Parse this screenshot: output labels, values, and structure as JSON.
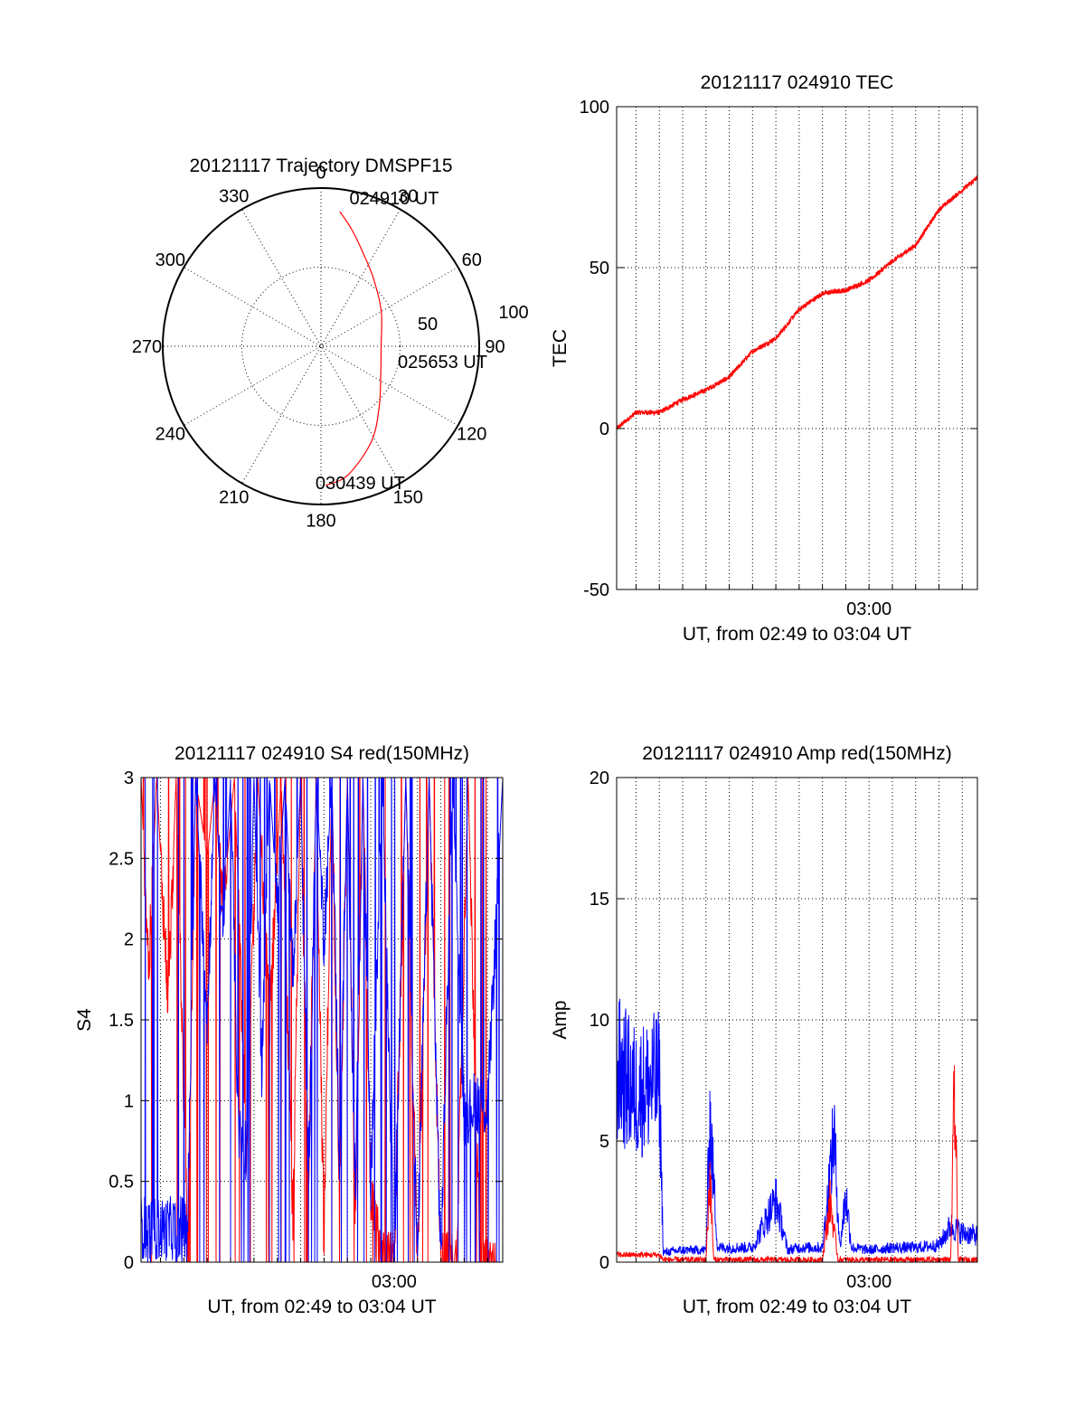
{
  "colors": {
    "red": "#ff0000",
    "blue": "#0000ff",
    "axis": "#000000",
    "grid": "#000000"
  },
  "chart_data": [
    {
      "id": "trajectory",
      "type": "polar",
      "title": "20121117 Trajectory DMSPF15",
      "angle_labels": [
        "0",
        "30",
        "60",
        "90",
        "120",
        "150",
        "180",
        "210",
        "240",
        "270",
        "300",
        "330"
      ],
      "radial_labels": [
        "50",
        "100"
      ],
      "rlim": [
        0,
        100
      ],
      "grid": true,
      "series": [
        {
          "color": "red",
          "points": [
            {
              "az": 8,
              "r": 86
            },
            {
              "az": 15,
              "r": 76
            },
            {
              "az": 24,
              "r": 65
            },
            {
              "az": 38,
              "r": 54
            },
            {
              "az": 60,
              "r": 44
            },
            {
              "az": 90,
              "r": 38
            },
            {
              "az": 116,
              "r": 42
            },
            {
              "az": 136,
              "r": 53
            },
            {
              "az": 152,
              "r": 68
            },
            {
              "az": 168,
              "r": 83
            },
            {
              "az": 178,
              "r": 88
            }
          ]
        }
      ],
      "annotations": [
        {
          "text": "024910 UT",
          "az": 8,
          "r": 86
        },
        {
          "text": "025653 UT",
          "az": 90,
          "r": 38
        },
        {
          "text": "030439 UT",
          "az": 178,
          "r": 88
        }
      ]
    },
    {
      "id": "tec",
      "type": "line",
      "title": "20121117 024910 TEC",
      "xlabel": "UT, from 02:49 to 03:04 UT",
      "ylabel": "TEC",
      "xlim": [
        "02:49:10",
        "03:04:39"
      ],
      "ylim": [
        -50,
        100
      ],
      "yticks": [
        -50,
        0,
        50,
        100
      ],
      "xticks": [
        {
          "t": "03:00:00",
          "label": "03:00"
        }
      ],
      "grid": true,
      "series": [
        {
          "color": "red",
          "x": [
            "02:49:10",
            "02:50:00",
            "02:51:00",
            "02:52:00",
            "02:53:00",
            "02:54:00",
            "02:55:00",
            "02:56:00",
            "02:57:00",
            "02:58:00",
            "02:59:00",
            "03:00:00",
            "03:01:00",
            "03:02:00",
            "03:03:00",
            "03:04:39"
          ],
          "values": [
            0,
            5,
            5,
            9,
            12,
            16,
            24,
            28,
            37,
            42,
            43,
            46,
            52,
            57,
            68,
            78
          ]
        }
      ]
    },
    {
      "id": "s4",
      "type": "line",
      "title": "20121117 024910 S4 red(150MHz)",
      "xlabel": "UT, from 02:49 to 03:04 UT",
      "ylabel": "S4",
      "xlim": [
        "02:49:10",
        "03:04:39"
      ],
      "ylim": [
        0,
        3
      ],
      "yticks": [
        "0",
        "0.5",
        "1",
        "1.5",
        "2",
        "2.5",
        "3"
      ],
      "xticks": [
        {
          "t": "03:00:00",
          "label": "03:00"
        }
      ],
      "grid": true,
      "series": [
        {
          "color": "red",
          "x": [
            "02:49:10",
            "02:49:30",
            "02:49:50",
            "02:50:20",
            "02:50:40",
            "02:51:10",
            "02:51:30",
            "02:52:00",
            "02:52:20",
            "02:52:40",
            "02:53:10",
            "02:53:40",
            "02:54:10",
            "02:54:40",
            "02:55:10",
            "02:55:40",
            "02:56:00",
            "02:56:20",
            "02:56:40",
            "02:57:00",
            "02:57:20",
            "02:57:40",
            "02:58:00",
            "02:58:20",
            "02:58:40",
            "02:59:00",
            "02:59:30",
            "03:00:00",
            "03:00:30",
            "03:01:00",
            "03:01:30",
            "03:02:00",
            "03:02:40",
            "03:03:10",
            "03:03:40",
            "03:04:20"
          ],
          "values": [
            3,
            1.8,
            3,
            1.6,
            3,
            0,
            3,
            2.5,
            3,
            2.2,
            3,
            0.65,
            3,
            1.5,
            3,
            0.2,
            3,
            0.5,
            3,
            0.1,
            3,
            0.4,
            3,
            0.3,
            3,
            0.4,
            0,
            0,
            3,
            0,
            3,
            0,
            0,
            3,
            0,
            0
          ]
        },
        {
          "color": "blue",
          "x": [
            "02:49:10",
            "02:50:00",
            "02:51:00",
            "02:51:10",
            "02:51:30",
            "02:52:00",
            "02:52:20",
            "02:52:40",
            "02:53:00",
            "02:53:20",
            "02:53:40",
            "02:54:00",
            "02:54:20",
            "02:54:40",
            "02:55:00",
            "02:55:20",
            "02:55:40",
            "02:56:00",
            "02:56:20",
            "02:56:40",
            "02:57:00",
            "02:57:20",
            "02:57:40",
            "02:58:00",
            "02:58:20",
            "02:58:40",
            "02:59:00",
            "02:59:30",
            "03:00:00",
            "03:00:30",
            "03:01:00",
            "03:01:30",
            "03:02:00",
            "03:02:30",
            "03:03:00",
            "03:03:30",
            "03:04:00",
            "03:04:39"
          ],
          "values": [
            0.22,
            0.2,
            0.22,
            0.25,
            3,
            1.5,
            3,
            2,
            3,
            0.8,
            0.7,
            3,
            1.2,
            3,
            2.2,
            3,
            1.8,
            3,
            0.5,
            3,
            2,
            3,
            0.6,
            3,
            0.4,
            3,
            0.45,
            3,
            0,
            3,
            0,
            3,
            0,
            3,
            0.9,
            1.0,
            0.95,
            3
          ]
        }
      ]
    },
    {
      "id": "amp",
      "type": "line",
      "title": "20121117 024910 Amp red(150MHz)",
      "xlabel": "UT, from 02:49 to 03:04 UT",
      "ylabel": "Amp",
      "xlim": [
        "02:49:10",
        "03:04:39"
      ],
      "ylim": [
        0,
        20
      ],
      "yticks": [
        0,
        5,
        10,
        15,
        20
      ],
      "xticks": [
        {
          "t": "03:00:00",
          "label": "03:00"
        }
      ],
      "grid": true,
      "series": [
        {
          "color": "blue",
          "x": [
            "02:49:10",
            "02:50:00",
            "02:51:00",
            "02:51:10",
            "02:52:00",
            "02:53:00",
            "02:53:10",
            "02:53:30",
            "02:54:00",
            "02:55:00",
            "02:56:00",
            "02:56:30",
            "02:57:00",
            "02:58:00",
            "02:58:30",
            "02:58:45",
            "02:59:00",
            "02:59:15",
            "03:00:00",
            "03:01:00",
            "03:02:00",
            "03:03:00",
            "03:03:30",
            "03:04:00",
            "03:04:39"
          ],
          "values": [
            8,
            7,
            7.5,
            0.4,
            0.5,
            0.5,
            5.9,
            0.6,
            0.6,
            0.6,
            2.6,
            0.5,
            0.6,
            0.6,
            5.3,
            0.6,
            2.8,
            0.6,
            0.5,
            0.6,
            0.6,
            0.7,
            1.5,
            1.2,
            1.1
          ]
        },
        {
          "color": "red",
          "x": [
            "02:49:10",
            "02:50:00",
            "02:51:00",
            "02:51:10",
            "02:53:00",
            "02:53:10",
            "02:53:20",
            "02:56:00",
            "02:58:00",
            "02:58:20",
            "02:58:40",
            "03:03:30",
            "03:03:40",
            "03:03:50",
            "03:04:39"
          ],
          "values": [
            0.3,
            0.3,
            0.3,
            0.1,
            0.1,
            3.6,
            0.1,
            0.1,
            0.1,
            2.5,
            0.1,
            0.1,
            7,
            0.1,
            0.1
          ]
        }
      ]
    }
  ]
}
